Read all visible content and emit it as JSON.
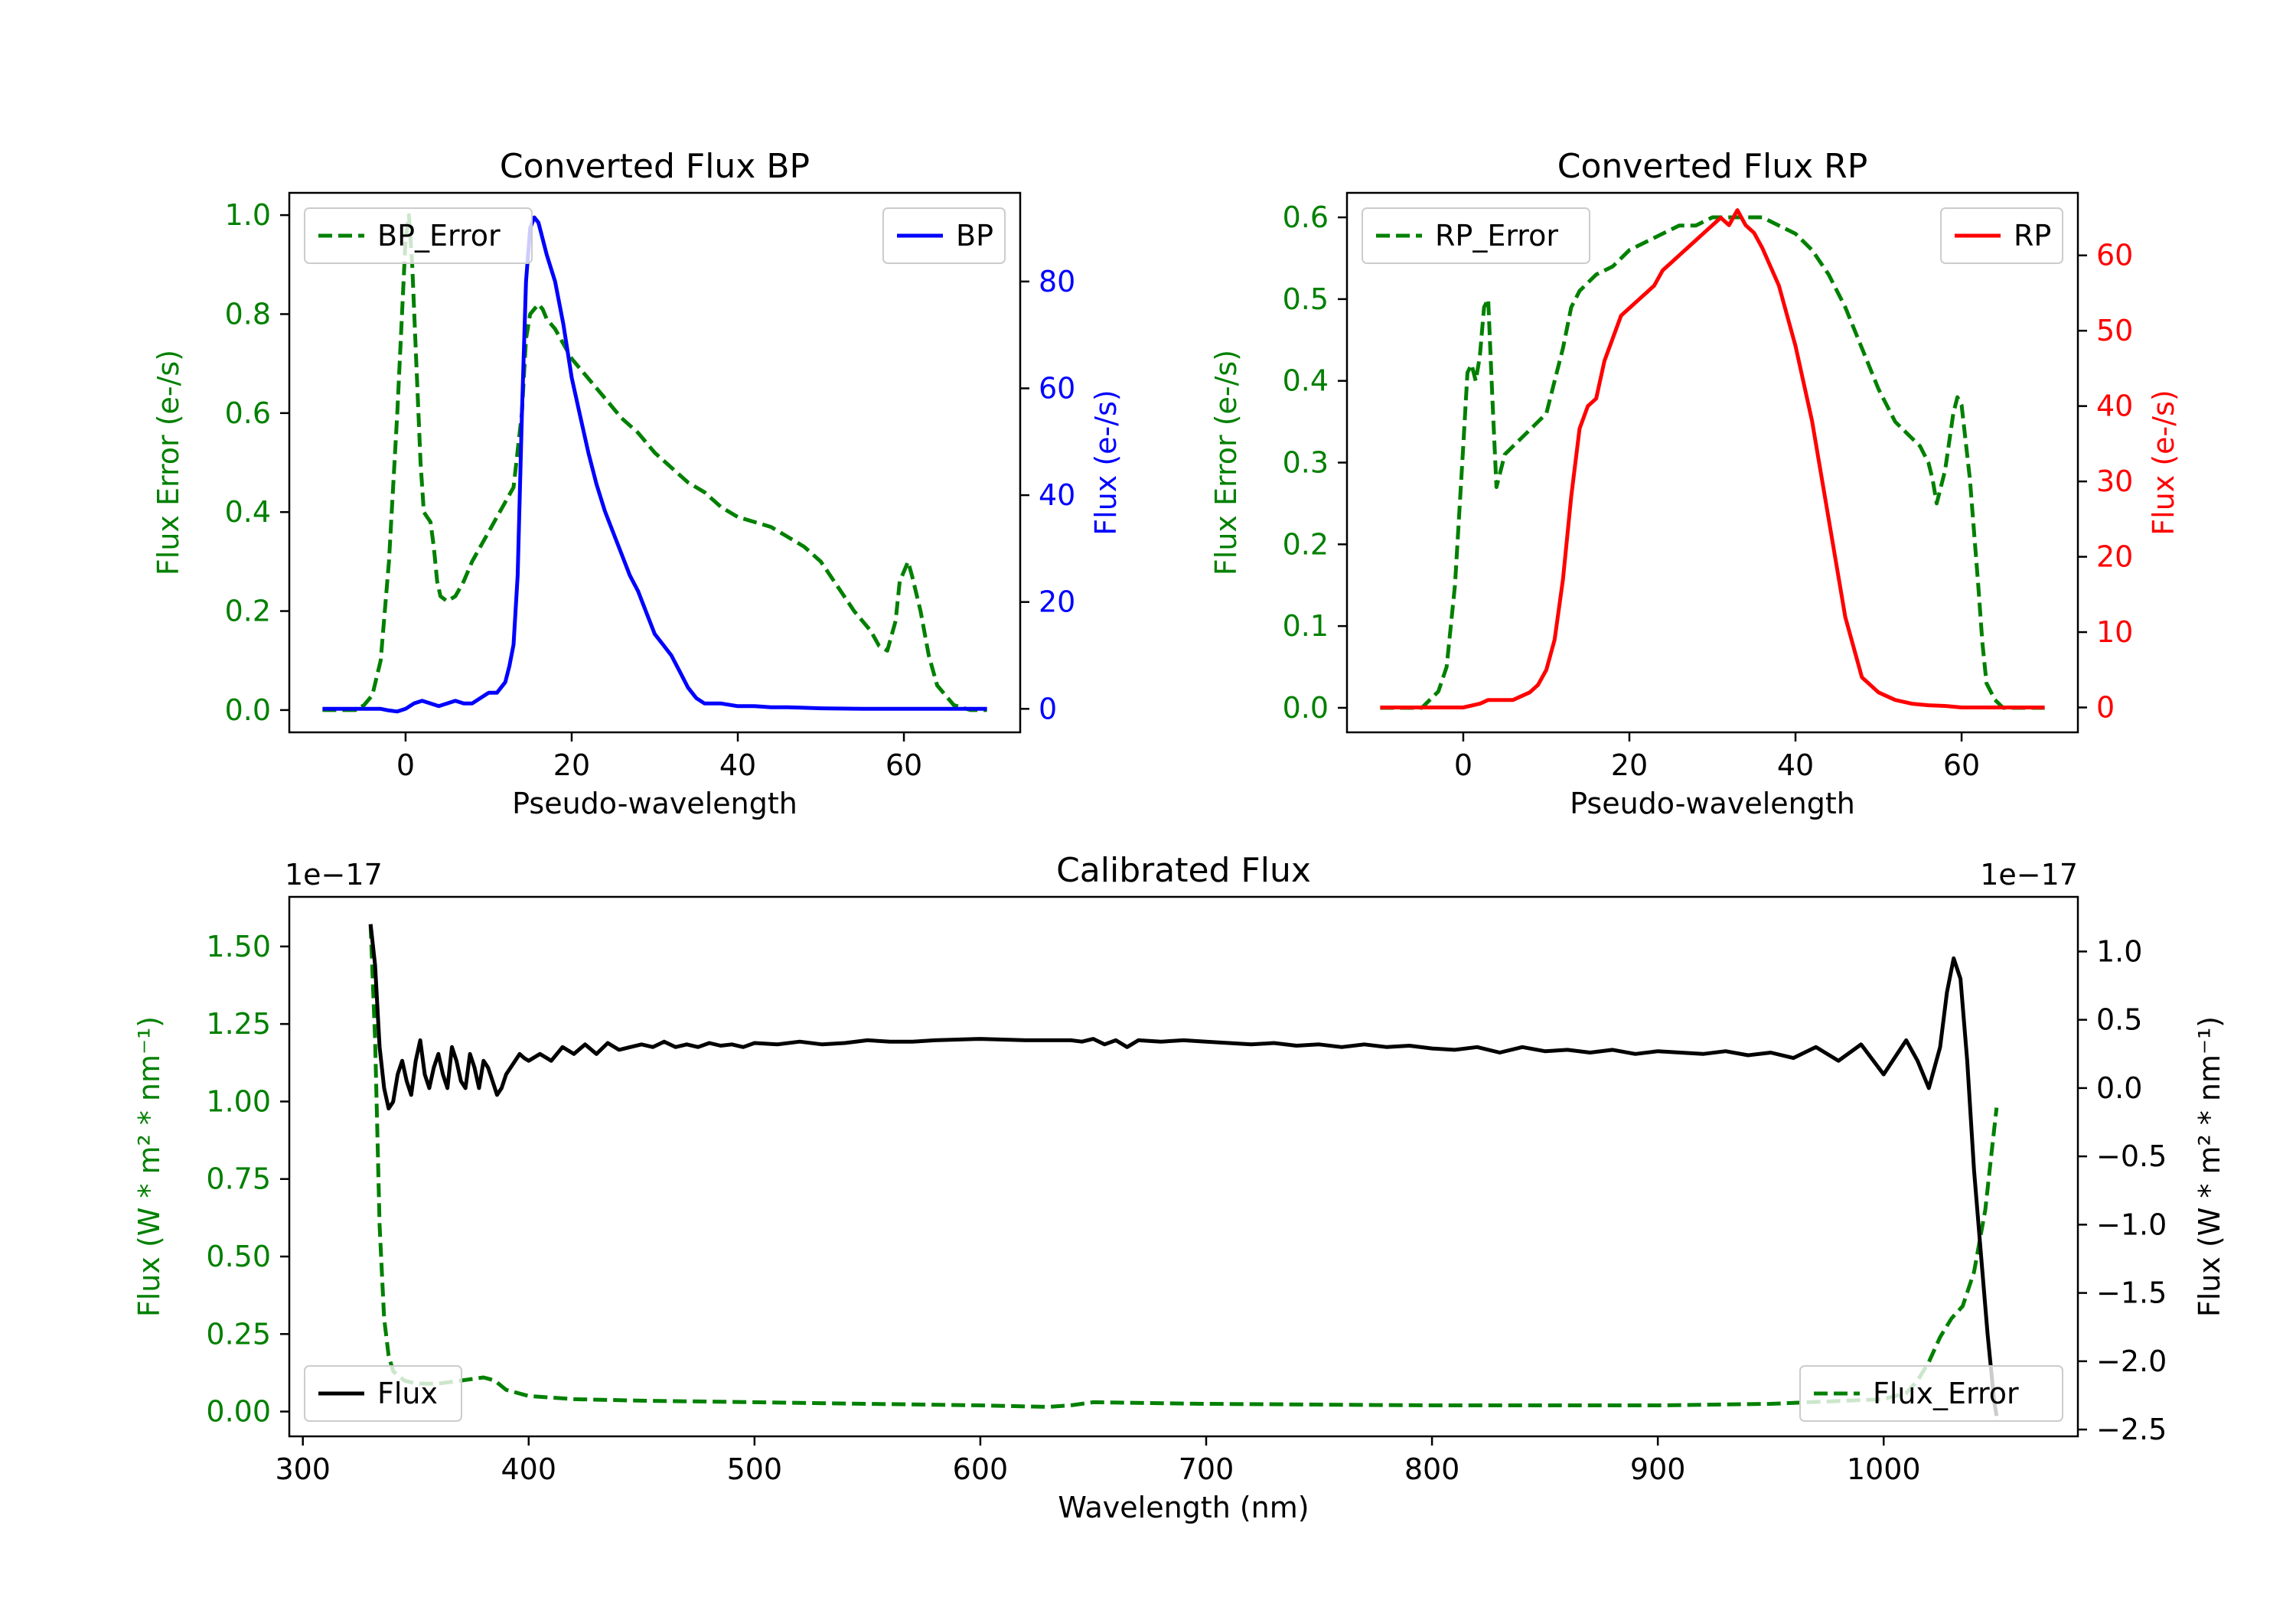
{
  "figure": {
    "background": "#ffffff"
  },
  "chart_data": [
    {
      "id": "bp",
      "type": "line",
      "title": "Converted Flux BP",
      "xlabel": "Pseudo-wavelength",
      "ylabel_left": "Flux Error (e-/s)",
      "ylabel_right": "Flux (e-/s)",
      "xlim": [
        -14,
        74
      ],
      "ylim_left": [
        -0.045,
        1.045
      ],
      "ylim_right": [
        -4.4,
        96.6
      ],
      "xticks": [
        0,
        20,
        40,
        60
      ],
      "yticks_left": [
        0.0,
        0.2,
        0.4,
        0.6,
        0.8,
        1.0
      ],
      "ytick_labels_left": [
        "0.0",
        "0.2",
        "0.4",
        "0.6",
        "0.8",
        "1.0"
      ],
      "yticks_right": [
        0,
        20,
        40,
        60,
        80
      ],
      "ytick_labels_right": [
        "0",
        "20",
        "40",
        "60",
        "80"
      ],
      "left_color": "#008000",
      "right_color": "#0000ff",
      "legend_left": {
        "label": "BP_Error",
        "placement": "upper-left"
      },
      "legend_right": {
        "label": "BP",
        "placement": "upper-right"
      },
      "series": [
        {
          "name": "BP_Error",
          "axis": "left",
          "color": "#008000",
          "dash": true,
          "x": [
            -10,
            -6,
            -5,
            -4,
            -3,
            -2,
            -1,
            0,
            0.4,
            0.8,
            1.3,
            1.8,
            2.2,
            2.6,
            3,
            3.4,
            3.8,
            4.2,
            5,
            6,
            7,
            8,
            9,
            10,
            11,
            12,
            13,
            14,
            14.5,
            15,
            15.5,
            16,
            16.5,
            17,
            18,
            19,
            20,
            21,
            22,
            24,
            26,
            28,
            30,
            32,
            34,
            36,
            38,
            40,
            42,
            44,
            46,
            48,
            50,
            52,
            54,
            56,
            57,
            58,
            59,
            59.5,
            60,
            60.5,
            61,
            62,
            63,
            64,
            66,
            68,
            70
          ],
          "y": [
            0,
            0,
            0.01,
            0.03,
            0.1,
            0.3,
            0.6,
            0.95,
            1.0,
            0.9,
            0.7,
            0.5,
            0.4,
            0.39,
            0.38,
            0.33,
            0.26,
            0.23,
            0.22,
            0.23,
            0.26,
            0.3,
            0.33,
            0.36,
            0.39,
            0.42,
            0.45,
            0.6,
            0.75,
            0.8,
            0.81,
            0.82,
            0.81,
            0.79,
            0.77,
            0.74,
            0.71,
            0.69,
            0.67,
            0.63,
            0.59,
            0.56,
            0.52,
            0.49,
            0.46,
            0.44,
            0.41,
            0.39,
            0.38,
            0.37,
            0.35,
            0.33,
            0.3,
            0.25,
            0.2,
            0.16,
            0.13,
            0.12,
            0.18,
            0.26,
            0.28,
            0.3,
            0.27,
            0.2,
            0.11,
            0.05,
            0.01,
            0.0,
            0.0
          ]
        },
        {
          "name": "BP",
          "axis": "right",
          "color": "#0000ff",
          "dash": false,
          "x": [
            -10,
            -6,
            -3,
            -2,
            -1,
            0,
            1,
            2,
            3,
            4,
            5,
            6,
            7,
            8,
            9,
            10,
            11,
            12,
            12.5,
            13,
            13.5,
            14,
            14.5,
            15,
            15.5,
            16,
            16.5,
            17,
            18,
            19,
            20,
            21,
            22,
            23,
            24,
            25,
            26,
            27,
            28,
            29,
            30,
            31,
            32,
            33,
            34,
            35,
            36,
            38,
            40,
            42,
            44,
            46,
            48,
            50,
            55,
            60,
            65,
            70
          ],
          "y": [
            0,
            0,
            0,
            -0.3,
            -0.5,
            0,
            1,
            1.5,
            1,
            0.5,
            1,
            1.5,
            1,
            1,
            2,
            3,
            3,
            5,
            8,
            12,
            25,
            55,
            80,
            90,
            92,
            91,
            88,
            85,
            80,
            72,
            62,
            55,
            48,
            42,
            37,
            33,
            29,
            25,
            22,
            18,
            14,
            12,
            10,
            7,
            4,
            2,
            1,
            1,
            0.5,
            0.5,
            0.3,
            0.3,
            0.2,
            0.1,
            0,
            0,
            0,
            0
          ]
        }
      ]
    },
    {
      "id": "rp",
      "type": "line",
      "title": "Converted Flux RP",
      "xlabel": "Pseudo-wavelength",
      "ylabel_left": "Flux Error (e-/s)",
      "ylabel_right": "Flux (e-/s)",
      "xlim": [
        -14,
        74
      ],
      "ylim_left": [
        -0.03,
        0.63
      ],
      "ylim_right": [
        -3.3,
        68.3
      ],
      "xticks": [
        0,
        20,
        40,
        60
      ],
      "yticks_left": [
        0.0,
        0.1,
        0.2,
        0.3,
        0.4,
        0.5,
        0.6
      ],
      "ytick_labels_left": [
        "0.0",
        "0.1",
        "0.2",
        "0.3",
        "0.4",
        "0.5",
        "0.6"
      ],
      "yticks_right": [
        0,
        10,
        20,
        30,
        40,
        50,
        60
      ],
      "ytick_labels_right": [
        "0",
        "10",
        "20",
        "30",
        "40",
        "50",
        "60"
      ],
      "left_color": "#008000",
      "right_color": "#ff0000",
      "legend_left": {
        "label": "RP_Error",
        "placement": "upper-left"
      },
      "legend_right": {
        "label": "RP",
        "placement": "upper-right"
      },
      "series": [
        {
          "name": "RP_Error",
          "axis": "left",
          "color": "#008000",
          "dash": true,
          "x": [
            -10,
            -5,
            -4,
            -3,
            -2,
            -1,
            0,
            0.5,
            1,
            1.5,
            2,
            2.5,
            3,
            3.5,
            4,
            5,
            6,
            7,
            8,
            9,
            10,
            11,
            12,
            13,
            14,
            15,
            16,
            18,
            20,
            22,
            24,
            26,
            28,
            30,
            32,
            34,
            36,
            38,
            40,
            42,
            44,
            46,
            48,
            50,
            52,
            54,
            55,
            56,
            56.5,
            57,
            58,
            59,
            59.5,
            60,
            61,
            62,
            62.5,
            63,
            64,
            65,
            66,
            68,
            70
          ],
          "y": [
            0,
            0,
            0.01,
            0.02,
            0.05,
            0.15,
            0.32,
            0.41,
            0.42,
            0.4,
            0.43,
            0.49,
            0.5,
            0.38,
            0.27,
            0.31,
            0.32,
            0.33,
            0.34,
            0.35,
            0.36,
            0.4,
            0.44,
            0.49,
            0.51,
            0.52,
            0.53,
            0.54,
            0.56,
            0.57,
            0.58,
            0.59,
            0.59,
            0.6,
            0.6,
            0.6,
            0.6,
            0.59,
            0.58,
            0.56,
            0.53,
            0.49,
            0.44,
            0.39,
            0.35,
            0.33,
            0.32,
            0.3,
            0.28,
            0.25,
            0.29,
            0.36,
            0.38,
            0.37,
            0.28,
            0.15,
            0.08,
            0.03,
            0.01,
            0,
            0,
            0,
            0
          ]
        },
        {
          "name": "RP",
          "axis": "right",
          "color": "#ff0000",
          "dash": false,
          "x": [
            -10,
            -4,
            -2,
            0,
            2,
            3,
            4,
            6,
            7,
            8,
            9,
            10,
            11,
            12,
            13,
            14,
            15,
            16,
            17,
            18,
            19,
            20,
            21,
            22,
            23,
            24,
            25,
            26,
            27,
            28,
            29,
            30,
            31,
            32,
            32.5,
            33,
            33.5,
            34,
            35,
            36,
            38,
            40,
            42,
            44,
            46,
            48,
            50,
            52,
            54,
            56,
            58,
            60,
            62,
            64,
            66,
            68,
            70
          ],
          "y": [
            0,
            0,
            0,
            0,
            0.5,
            1,
            1,
            1,
            1.5,
            2,
            3,
            5,
            9,
            17,
            28,
            37,
            40,
            41,
            46,
            49,
            52,
            53,
            54,
            55,
            56,
            58,
            59,
            60,
            61,
            62,
            63,
            64,
            65,
            64,
            65,
            66,
            65,
            64,
            63,
            61,
            56,
            48,
            38,
            25,
            12,
            4,
            2,
            1,
            0.5,
            0.3,
            0.2,
            0,
            0,
            0,
            0,
            0,
            0
          ]
        }
      ]
    },
    {
      "id": "calibrated",
      "type": "line",
      "title": "Calibrated Flux",
      "xlabel": "Wavelength (nm)",
      "ylabel_left": "Flux (W * m² * nm⁻¹)",
      "ylabel_right": "Flux (W * m² * nm⁻¹)",
      "offset_left": "1e−17",
      "offset_right": "1e−17",
      "xlim": [
        294,
        1086
      ],
      "ylim_left": [
        -0.08,
        1.66
      ],
      "ylim_right": [
        -2.55,
        1.4
      ],
      "xticks": [
        300,
        400,
        500,
        600,
        700,
        800,
        900,
        1000
      ],
      "yticks_left": [
        0.0,
        0.25,
        0.5,
        0.75,
        1.0,
        1.25,
        1.5
      ],
      "ytick_labels_left": [
        "0.00",
        "0.25",
        "0.50",
        "0.75",
        "1.00",
        "1.25",
        "1.50"
      ],
      "yticks_right": [
        -2.5,
        -2.0,
        -1.5,
        -1.0,
        -0.5,
        0.0,
        0.5,
        1.0
      ],
      "ytick_labels_right": [
        "−2.5",
        "−2.0",
        "−1.5",
        "−1.0",
        "−0.5",
        "0.0",
        "0.5",
        "1.0"
      ],
      "left_color": "#008000",
      "right_color": "#000000",
      "legend_left": {
        "label": "Flux",
        "placement": "lower-left"
      },
      "legend_right": {
        "label": "Flux_Error",
        "placement": "lower-right"
      },
      "series": [
        {
          "name": "Flux_Error",
          "axis": "left",
          "color": "#008000",
          "dash": true,
          "x": [
            330,
            332,
            334,
            336,
            338,
            340,
            345,
            350,
            360,
            370,
            380,
            385,
            390,
            400,
            420,
            450,
            500,
            550,
            600,
            630,
            640,
            650,
            700,
            800,
            900,
            950,
            1000,
            1010,
            1015,
            1020,
            1025,
            1030,
            1035,
            1040,
            1045,
            1048,
            1050
          ],
          "y": [
            1.57,
            1.2,
            0.6,
            0.3,
            0.18,
            0.13,
            0.1,
            0.09,
            0.09,
            0.1,
            0.11,
            0.1,
            0.07,
            0.05,
            0.04,
            0.035,
            0.03,
            0.025,
            0.02,
            0.015,
            0.02,
            0.03,
            0.025,
            0.02,
            0.02,
            0.025,
            0.04,
            0.06,
            0.1,
            0.16,
            0.24,
            0.3,
            0.34,
            0.45,
            0.65,
            0.85,
            0.98
          ]
        },
        {
          "name": "Flux",
          "axis": "right",
          "color": "#000000",
          "dash": false,
          "x": [
            330,
            332,
            334,
            336,
            338,
            340,
            342,
            344,
            346,
            348,
            350,
            352,
            354,
            356,
            358,
            360,
            362,
            364,
            366,
            368,
            370,
            372,
            374,
            376,
            378,
            380,
            382,
            384,
            386,
            388,
            390,
            392,
            394,
            396,
            398,
            400,
            405,
            410,
            415,
            420,
            425,
            430,
            435,
            440,
            445,
            450,
            455,
            460,
            465,
            470,
            475,
            480,
            485,
            490,
            495,
            500,
            510,
            520,
            530,
            540,
            550,
            560,
            570,
            580,
            600,
            620,
            640,
            645,
            650,
            655,
            660,
            665,
            670,
            680,
            690,
            700,
            710,
            720,
            730,
            740,
            750,
            760,
            770,
            780,
            790,
            800,
            810,
            820,
            830,
            840,
            850,
            860,
            870,
            880,
            890,
            900,
            910,
            920,
            930,
            940,
            950,
            960,
            970,
            980,
            990,
            1000,
            1010,
            1015,
            1020,
            1025,
            1028,
            1031,
            1034,
            1037,
            1040,
            1043,
            1046,
            1049,
            1050
          ],
          "y": [
            1.2,
            0.9,
            0.3,
            0,
            -0.15,
            -0.1,
            0.1,
            0.2,
            0.05,
            -0.05,
            0.2,
            0.35,
            0.1,
            0,
            0.15,
            0.25,
            0.1,
            0,
            0.3,
            0.2,
            0.05,
            0,
            0.25,
            0.15,
            0,
            0.2,
            0.15,
            0.05,
            -0.05,
            0,
            0.1,
            0.15,
            0.2,
            0.25,
            0.22,
            0.2,
            0.25,
            0.2,
            0.3,
            0.25,
            0.32,
            0.25,
            0.33,
            0.28,
            0.3,
            0.32,
            0.3,
            0.34,
            0.3,
            0.32,
            0.3,
            0.33,
            0.31,
            0.32,
            0.3,
            0.33,
            0.32,
            0.34,
            0.32,
            0.33,
            0.35,
            0.34,
            0.34,
            0.35,
            0.36,
            0.35,
            0.35,
            0.34,
            0.36,
            0.32,
            0.35,
            0.3,
            0.35,
            0.34,
            0.35,
            0.34,
            0.33,
            0.32,
            0.33,
            0.31,
            0.32,
            0.3,
            0.32,
            0.3,
            0.31,
            0.29,
            0.28,
            0.3,
            0.26,
            0.3,
            0.27,
            0.28,
            0.26,
            0.28,
            0.25,
            0.27,
            0.26,
            0.25,
            0.27,
            0.24,
            0.26,
            0.22,
            0.3,
            0.2,
            0.32,
            0.1,
            0.35,
            0.2,
            0.0,
            0.3,
            0.7,
            0.95,
            0.8,
            0.2,
            -0.6,
            -1.2,
            -1.8,
            -2.3,
            -2.4
          ]
        }
      ]
    }
  ]
}
